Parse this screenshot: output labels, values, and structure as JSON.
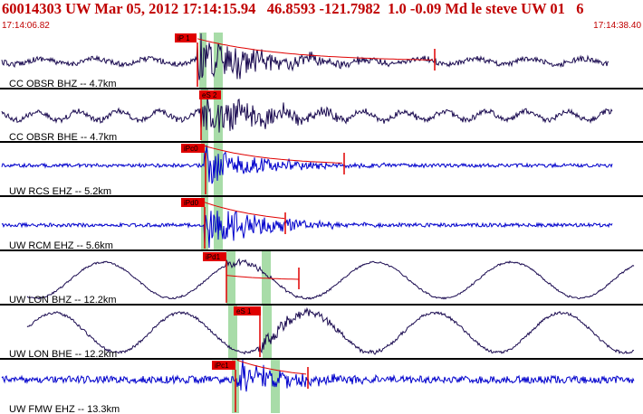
{
  "header": {
    "title": "60014303 UW Mar 05, 2012 17:14:15.94   46.8593 -121.7982  1.0 -0.09 Md le steve UW 01   6",
    "time_start": "17:14:06.82",
    "time_end": "17:14:38.40"
  },
  "colors": {
    "header_text": "#c00000",
    "trace_dark": "#1a0a50",
    "trace_blue": "#0000cc",
    "pick_box": "#e00000",
    "window_band": "#a8dca8",
    "separator": "#000000"
  },
  "traces": [
    {
      "station_label": "CC OBSR BHZ -- 4.7km",
      "pick_label": "iP 1",
      "color_key": "trace_dark"
    },
    {
      "station_label": "CC OBSR BHE -- 4.7km",
      "pick_label": "eS 2",
      "color_key": "trace_dark"
    },
    {
      "station_label": "UW RCS EHZ -- 5.2km",
      "pick_label": "iPc0",
      "color_key": "trace_blue"
    },
    {
      "station_label": "UW RCM EHZ -- 5.6km",
      "pick_label": "iPd0",
      "color_key": "trace_blue"
    },
    {
      "station_label": "UW LON BHZ -- 12.2km",
      "pick_label": "iPd1",
      "color_key": "trace_dark"
    },
    {
      "station_label": "UW LON BHE -- 12.2km",
      "pick_label": "eS 1",
      "color_key": "trace_dark"
    },
    {
      "station_label": "UW FMW EHZ -- 13.3km",
      "pick_label": "iPc1",
      "color_key": "trace_blue"
    }
  ]
}
